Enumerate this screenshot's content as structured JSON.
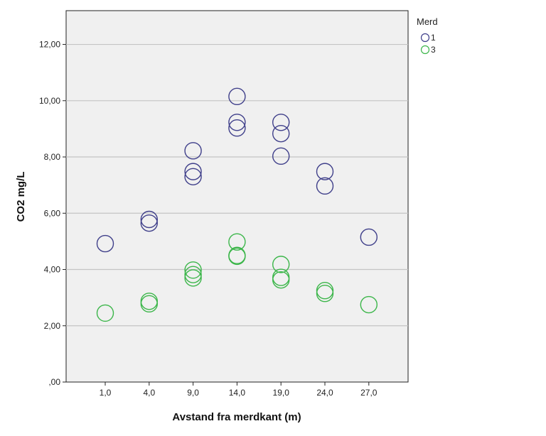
{
  "chart_data": {
    "type": "scatter",
    "title": "",
    "xlabel": "Avstand fra merdkant (m)",
    "ylabel": "CO2 mg/L",
    "x_categories": [
      "1,0",
      "4,0",
      "9,0",
      "14,0",
      "19,0",
      "24,0",
      "27,0"
    ],
    "y_ticks": [
      ",00",
      "2,00",
      "4,00",
      "6,00",
      "8,00",
      "10,00",
      "12,00"
    ],
    "ylim": [
      0,
      13.2
    ],
    "grid": "horizontal",
    "legend_title": "Merd",
    "legend_position": "right",
    "series": [
      {
        "name": "1",
        "color": "#3f3f8a",
        "points": [
          {
            "x": "1,0",
            "y": 4.92
          },
          {
            "x": "4,0",
            "y": 5.78
          },
          {
            "x": "4,0",
            "y": 5.65
          },
          {
            "x": "9,0",
            "y": 8.22
          },
          {
            "x": "9,0",
            "y": 7.48
          },
          {
            "x": "9,0",
            "y": 7.3
          },
          {
            "x": "14,0",
            "y": 10.15
          },
          {
            "x": "14,0",
            "y": 9.23
          },
          {
            "x": "14,0",
            "y": 9.03
          },
          {
            "x": "19,0",
            "y": 9.23
          },
          {
            "x": "19,0",
            "y": 8.83
          },
          {
            "x": "19,0",
            "y": 8.03
          },
          {
            "x": "24,0",
            "y": 7.48
          },
          {
            "x": "24,0",
            "y": 6.97
          },
          {
            "x": "27,0",
            "y": 5.15
          }
        ]
      },
      {
        "name": "3",
        "color": "#3cb64a",
        "points": [
          {
            "x": "1,0",
            "y": 2.45
          },
          {
            "x": "4,0",
            "y": 2.87
          },
          {
            "x": "4,0",
            "y": 2.78
          },
          {
            "x": "9,0",
            "y": 3.98
          },
          {
            "x": "9,0",
            "y": 3.82
          },
          {
            "x": "9,0",
            "y": 3.7
          },
          {
            "x": "14,0",
            "y": 4.98
          },
          {
            "x": "14,0",
            "y": 4.5
          },
          {
            "x": "14,0",
            "y": 4.47
          },
          {
            "x": "19,0",
            "y": 4.18
          },
          {
            "x": "19,0",
            "y": 3.72
          },
          {
            "x": "19,0",
            "y": 3.63
          },
          {
            "x": "24,0",
            "y": 3.25
          },
          {
            "x": "24,0",
            "y": 3.15
          },
          {
            "x": "27,0",
            "y": 2.75
          }
        ]
      }
    ]
  }
}
